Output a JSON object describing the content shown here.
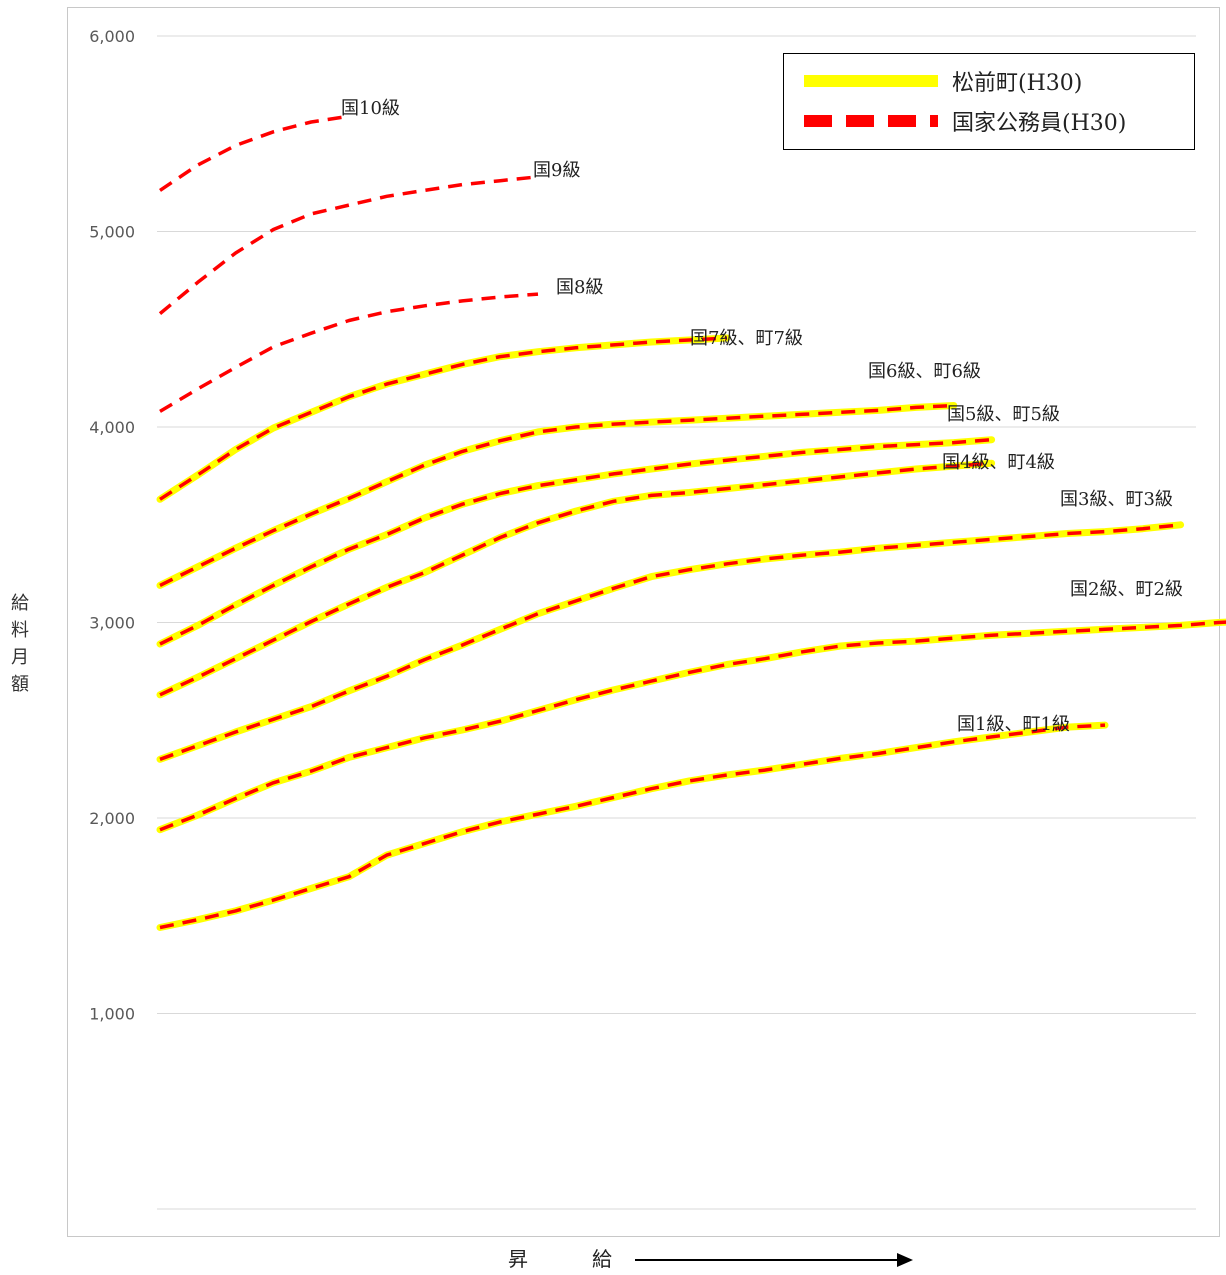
{
  "chart_data": {
    "type": "line",
    "title": "",
    "xlabel": "昇　給",
    "ylabel": "給料月額",
    "ylim": [
      0,
      6000
    ],
    "yticks": [
      1000,
      2000,
      3000,
      4000,
      5000,
      6000
    ],
    "ytick_labels": [
      "1,000",
      "2,000",
      "3,000",
      "4,000",
      "5,000",
      "6,000"
    ],
    "grid": true,
    "legend_position": "top-right",
    "legend": [
      {
        "label": "松前町(H30)",
        "color": "#ffff00",
        "style": "solid"
      },
      {
        "label": "国家公務員(H30)",
        "color": "#ff0000",
        "style": "dashed"
      }
    ],
    "series": [
      {
        "name": "国1級、町1級",
        "both": true,
        "values": [
          1440,
          1480,
          1525,
          1580,
          1640,
          1700,
          1810,
          1870,
          1930,
          1980,
          2020,
          2060,
          2105,
          2150,
          2190,
          2220,
          2245,
          2275,
          2305,
          2330,
          2360,
          2390,
          2415,
          2440,
          2465,
          2475
        ]
      },
      {
        "name": "国2級、町2級",
        "both": true,
        "values": [
          1940,
          2015,
          2100,
          2180,
          2240,
          2310,
          2360,
          2410,
          2450,
          2495,
          2550,
          2605,
          2655,
          2700,
          2745,
          2785,
          2815,
          2850,
          2880,
          2895,
          2905,
          2920,
          2935,
          2945,
          2955,
          2965,
          2975,
          2985,
          3000,
          3010,
          3025,
          3035,
          3045
        ]
      },
      {
        "name": "国3級、町3級",
        "both": true,
        "values": [
          2300,
          2370,
          2440,
          2505,
          2570,
          2650,
          2725,
          2810,
          2885,
          2965,
          3045,
          3110,
          3175,
          3235,
          3270,
          3300,
          3325,
          3345,
          3360,
          3380,
          3395,
          3410,
          3425,
          3440,
          3455,
          3465,
          3480,
          3500
        ]
      },
      {
        "name": "国4級、町4級",
        "both": true,
        "values": [
          2630,
          2720,
          2815,
          2910,
          3005,
          3095,
          3180,
          3255,
          3345,
          3435,
          3510,
          3570,
          3620,
          3650,
          3665,
          3685,
          3705,
          3725,
          3745,
          3765,
          3785,
          3800,
          3815
        ]
      },
      {
        "name": "国5級、町5級",
        "both": true,
        "values": [
          2890,
          2985,
          3090,
          3190,
          3285,
          3375,
          3450,
          3535,
          3605,
          3660,
          3700,
          3730,
          3760,
          3785,
          3810,
          3830,
          3850,
          3870,
          3885,
          3900,
          3910,
          3920,
          3935
        ]
      },
      {
        "name": "国6級、町6級",
        "both": true,
        "values": [
          3190,
          3285,
          3380,
          3470,
          3555,
          3635,
          3720,
          3805,
          3875,
          3930,
          3975,
          4000,
          4015,
          4025,
          4035,
          4045,
          4055,
          4065,
          4075,
          4085,
          4100,
          4110
        ]
      },
      {
        "name": "国7級、町7級",
        "both": true,
        "values": [
          3630,
          3755,
          3885,
          3995,
          4075,
          4155,
          4220,
          4270,
          4320,
          4360,
          4385,
          4405,
          4420,
          4435,
          4445,
          4455
        ]
      },
      {
        "name": "国8級",
        "both": false,
        "values": [
          4080,
          4195,
          4305,
          4410,
          4480,
          4545,
          4590,
          4620,
          4645,
          4665,
          4680
        ]
      },
      {
        "name": "国9級",
        "both": false,
        "values": [
          4580,
          4740,
          4890,
          5010,
          5090,
          5135,
          5180,
          5210,
          5240,
          5260,
          5280
        ]
      },
      {
        "name": "国10級",
        "both": false,
        "values": [
          5210,
          5340,
          5440,
          5510,
          5560,
          5590
        ]
      }
    ]
  }
}
